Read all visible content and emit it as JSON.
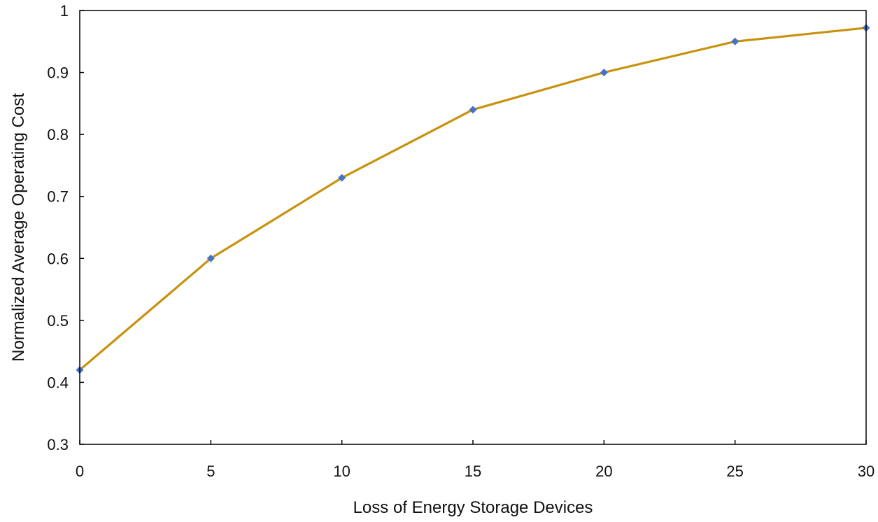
{
  "chart_data": {
    "type": "line",
    "title": "",
    "xlabel": "Loss of Energy Storage Devices",
    "ylabel": "Normalized Average Operating Cost",
    "x_ticks": [
      "0",
      "5",
      "10",
      "15",
      "20",
      "25",
      "30"
    ],
    "y_ticks": [
      "0.3",
      "0.4",
      "0.5",
      "0.6",
      "0.7",
      "0.8",
      "0.9",
      "1"
    ],
    "xlim": [
      0,
      30
    ],
    "ylim": [
      0.3,
      1.0
    ],
    "grid": false,
    "legend": "none",
    "series": [
      {
        "x": [
          0,
          5,
          10,
          15,
          20,
          25,
          30
        ],
        "values": [
          0.42,
          0.6,
          0.73,
          0.84,
          0.9,
          0.95,
          0.972
        ],
        "line_color": "#C8920F",
        "marker_color": "#4472C4",
        "marker": "diamond"
      }
    ]
  }
}
